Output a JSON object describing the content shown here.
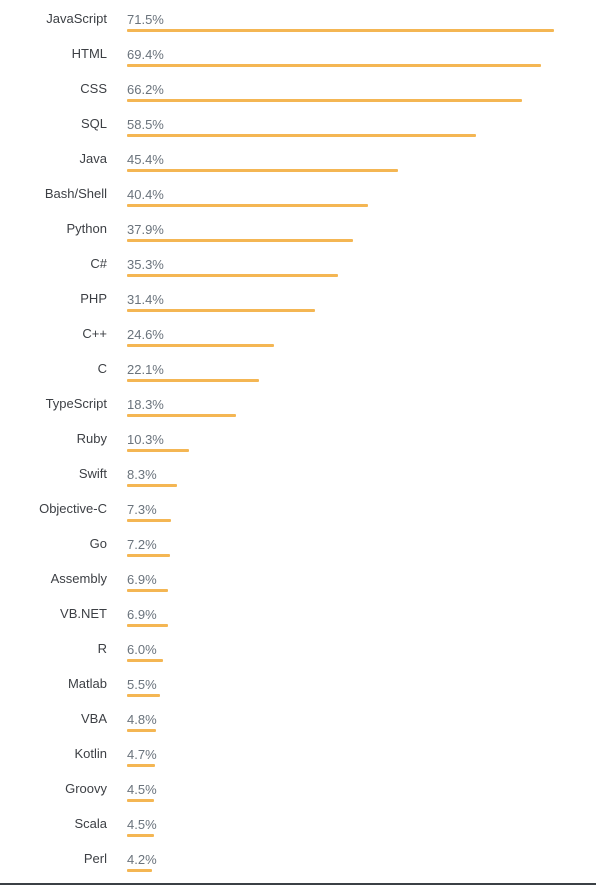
{
  "colors": {
    "bar": "#f4b653",
    "label_text": "#3c3f44",
    "value_text": "#6a737c",
    "rule": "#3b4045"
  },
  "chart_data": {
    "type": "bar",
    "orientation": "horizontal",
    "title": "",
    "xlabel": "",
    "ylabel": "",
    "unit": "%",
    "xlim": [
      0,
      75
    ],
    "grid": false,
    "categories": [
      "JavaScript",
      "HTML",
      "CSS",
      "SQL",
      "Java",
      "Bash/Shell",
      "Python",
      "C#",
      "PHP",
      "C++",
      "C",
      "TypeScript",
      "Ruby",
      "Swift",
      "Objective-C",
      "Go",
      "Assembly",
      "VB.NET",
      "R",
      "Matlab",
      "VBA",
      "Kotlin",
      "Groovy",
      "Scala",
      "Perl"
    ],
    "values": [
      71.5,
      69.4,
      66.2,
      58.5,
      45.4,
      40.4,
      37.9,
      35.3,
      31.4,
      24.6,
      22.1,
      18.3,
      10.3,
      8.3,
      7.3,
      7.2,
      6.9,
      6.9,
      6.0,
      5.5,
      4.8,
      4.7,
      4.5,
      4.5,
      4.2
    ],
    "value_labels": [
      "71.5%",
      "69.4%",
      "66.2%",
      "58.5%",
      "45.4%",
      "40.4%",
      "37.9%",
      "35.3%",
      "31.4%",
      "24.6%",
      "22.1%",
      "18.3%",
      "10.3%",
      "8.3%",
      "7.3%",
      "7.2%",
      "6.9%",
      "6.9%",
      "6.0%",
      "5.5%",
      "4.8%",
      "4.7%",
      "4.5%",
      "4.5%",
      "4.2%"
    ]
  }
}
